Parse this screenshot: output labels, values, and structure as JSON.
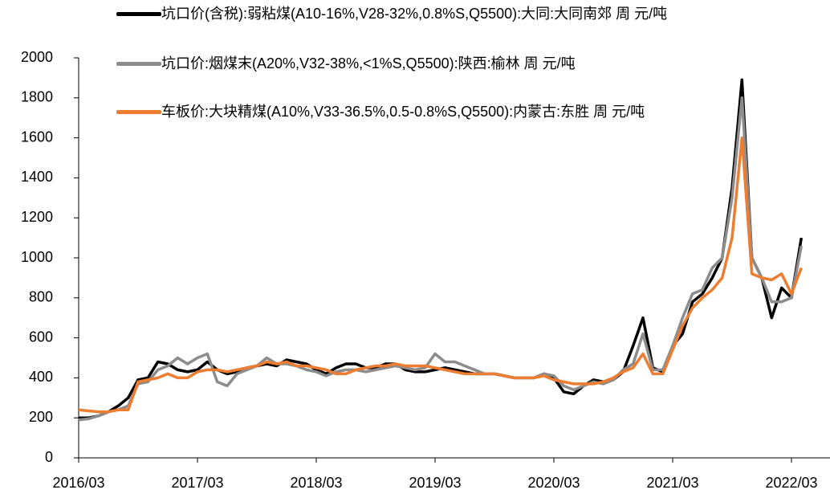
{
  "chart_data": {
    "type": "line",
    "x": [
      "2016/03",
      "2016/04",
      "2016/05",
      "2016/06",
      "2016/07",
      "2016/08",
      "2016/09",
      "2016/10",
      "2016/11",
      "2016/12",
      "2017/01",
      "2017/02",
      "2017/03",
      "2017/04",
      "2017/05",
      "2017/06",
      "2017/07",
      "2017/08",
      "2017/09",
      "2017/10",
      "2017/11",
      "2017/12",
      "2018/01",
      "2018/02",
      "2018/03",
      "2018/04",
      "2018/05",
      "2018/06",
      "2018/07",
      "2018/08",
      "2018/09",
      "2018/10",
      "2018/11",
      "2018/12",
      "2019/01",
      "2019/02",
      "2019/03",
      "2019/04",
      "2019/05",
      "2019/06",
      "2019/07",
      "2019/08",
      "2019/09",
      "2019/10",
      "2019/11",
      "2019/12",
      "2020/01",
      "2020/02",
      "2020/03",
      "2020/04",
      "2020/05",
      "2020/06",
      "2020/07",
      "2020/08",
      "2020/09",
      "2020/10",
      "2020/11",
      "2020/12",
      "2021/01",
      "2021/02",
      "2021/03",
      "2021/04",
      "2021/05",
      "2021/06",
      "2021/07",
      "2021/08",
      "2021/09",
      "2021/10",
      "2021/11",
      "2021/12",
      "2022/01",
      "2022/02",
      "2022/03",
      "2022/04"
    ],
    "series": [
      {
        "name": "坑口价(含税):弱粘煤(A10-16%,V28-32%,0.8%S,Q5500):大同:大同南郊 周 元/吨",
        "color": "#000000",
        "values": [
          200,
          200,
          210,
          230,
          260,
          300,
          390,
          400,
          480,
          470,
          440,
          430,
          440,
          480,
          440,
          420,
          430,
          450,
          460,
          470,
          460,
          490,
          480,
          470,
          440,
          420,
          450,
          470,
          470,
          450,
          450,
          470,
          470,
          440,
          430,
          430,
          440,
          450,
          440,
          430,
          420,
          420,
          420,
          410,
          400,
          400,
          400,
          420,
          400,
          330,
          320,
          360,
          390,
          380,
          390,
          430,
          560,
          700,
          450,
          430,
          560,
          620,
          780,
          820,
          900,
          1000,
          1350,
          1890,
          1000,
          900,
          700,
          850,
          800,
          1100
        ]
      },
      {
        "name": "坑口价:烟煤末(A20%,V32-38%,<1%S,Q5500):陕西:榆林 周 元/吨",
        "color": "#8c8c8c",
        "values": [
          190,
          195,
          210,
          230,
          240,
          260,
          370,
          380,
          440,
          460,
          500,
          470,
          500,
          520,
          380,
          360,
          420,
          440,
          460,
          500,
          470,
          470,
          460,
          440,
          430,
          410,
          430,
          440,
          440,
          430,
          440,
          450,
          460,
          450,
          440,
          450,
          520,
          480,
          480,
          460,
          440,
          420,
          420,
          410,
          400,
          400,
          400,
          420,
          410,
          360,
          340,
          360,
          380,
          370,
          390,
          440,
          470,
          620,
          440,
          440,
          560,
          700,
          820,
          840,
          950,
          1000,
          1300,
          1800,
          1000,
          900,
          780,
          780,
          800,
          1060
        ]
      },
      {
        "name": "车板价:大块精煤(A10%,V33-36.5%,0.5-0.8%S,Q5500):内蒙古:东胜 周 元/吨",
        "color": "#ed7d31",
        "values": [
          240,
          235,
          230,
          230,
          240,
          240,
          380,
          390,
          400,
          420,
          400,
          400,
          430,
          440,
          440,
          430,
          440,
          450,
          460,
          480,
          470,
          480,
          460,
          460,
          450,
          440,
          420,
          420,
          440,
          450,
          460,
          460,
          470,
          460,
          460,
          460,
          450,
          440,
          430,
          420,
          420,
          420,
          420,
          410,
          400,
          400,
          400,
          410,
          390,
          380,
          370,
          370,
          370,
          380,
          400,
          430,
          450,
          520,
          420,
          420,
          540,
          660,
          750,
          800,
          840,
          900,
          1100,
          1600,
          920,
          900,
          890,
          920,
          820,
          950
        ]
      }
    ],
    "xticks": [
      "2016/03",
      "2017/03",
      "2018/03",
      "2019/03",
      "2020/03",
      "2021/03",
      "2022/03"
    ],
    "ylim": [
      0,
      2000
    ],
    "yticks": [
      0,
      200,
      400,
      600,
      800,
      1000,
      1200,
      1400,
      1600,
      1800,
      2000
    ]
  }
}
